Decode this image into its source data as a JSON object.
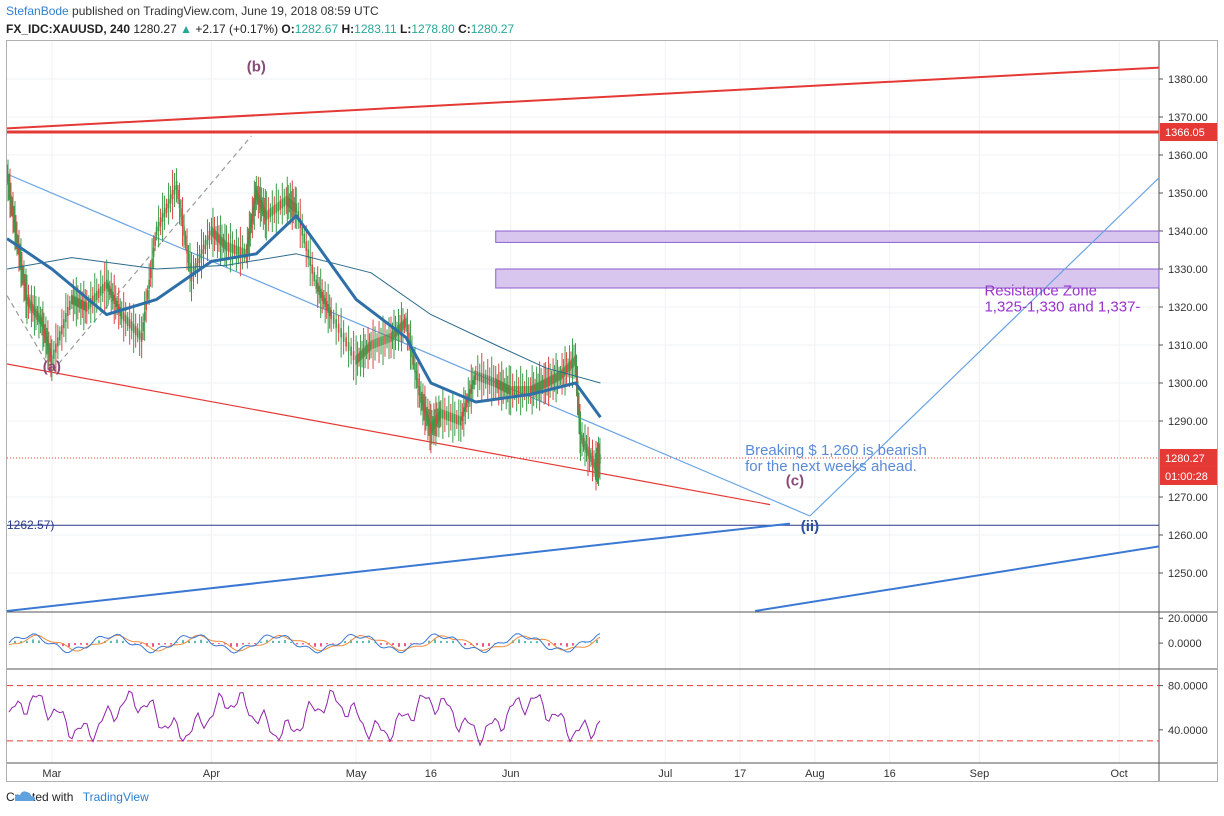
{
  "header": {
    "author": "StefanBode",
    "published_text": " published on TradingView.com, June 19, 2018 08:59 UTC",
    "symbol": "FX_IDC:XAUUSD, 240",
    "last": "1280.27",
    "arrow": "▲",
    "change": "+2.17 (+0.17%)",
    "o_label": "O:",
    "o_value": "1282.67",
    "h_label": "H:",
    "h_value": "1283.11",
    "l_label": "L:",
    "l_value": "1278.80",
    "c_label": "C:",
    "c_value": "1280.27"
  },
  "footer": {
    "created_with": "Created with",
    "brand": "TradingView"
  },
  "chart_data": {
    "type": "line",
    "symbol": "FX_IDC:XAUUSD",
    "interval": "240",
    "grid": true,
    "colors": {
      "price_line": "#ee4444",
      "ma_thick": "#2e6fa8",
      "ma_thin": "#2a6a8a",
      "red_line": "#e53935",
      "blue_line": "#3a78d4",
      "light_blue": "#6aa4e4",
      "zone_fill": "#d9c6ef",
      "zone_stroke": "#8b5fcf",
      "wave_label": "#8a4a78",
      "wave_ii": "#2a4f9a",
      "annotation_purple": "#9933cc",
      "annotation_blue": "#5a8ad8",
      "rsi_line": "#8e24aa",
      "osc_blue": "#3a78d4",
      "osc_orange": "#ef8a3a"
    },
    "x_axis": {
      "ticks": [
        {
          "label": "Mar",
          "date": "2018-03-01"
        },
        {
          "label": "Apr",
          "date": "2018-04-02"
        },
        {
          "label": "May",
          "date": "2018-05-01"
        },
        {
          "label": "16",
          "date": "2018-05-16"
        },
        {
          "label": "Jun",
          "date": "2018-06-01"
        },
        {
          "label": "Jul",
          "date": "2018-07-02"
        },
        {
          "label": "17",
          "date": "2018-07-17"
        },
        {
          "label": "Aug",
          "date": "2018-08-01"
        },
        {
          "label": "16",
          "date": "2018-08-16"
        },
        {
          "label": "Sep",
          "date": "2018-09-03"
        },
        {
          "label": "Oct",
          "date": "2018-10-01"
        }
      ],
      "range": [
        "2018-02-20",
        "2018-10-09"
      ]
    },
    "price_axis": {
      "ticks": [
        "1380.00",
        "1370.00",
        "1360.00",
        "1350.00",
        "1340.00",
        "1330.00",
        "1320.00",
        "1310.00",
        "1300.00",
        "1290.00",
        "1270.00",
        "1260.00",
        "1250.00"
      ],
      "ylim": [
        1240,
        1390
      ],
      "last_price_label": "1280.27",
      "countdown_label": "01:00:28",
      "hline_label": "1366.05"
    },
    "series": [
      {
        "kind": "price",
        "x": [
          "2018-02-20",
          "2018-02-22",
          "2018-02-24",
          "2018-02-27",
          "2018-03-01",
          "2018-03-05",
          "2018-03-08",
          "2018-03-12",
          "2018-03-15",
          "2018-03-19",
          "2018-03-22",
          "2018-03-26",
          "2018-03-29",
          "2018-04-02",
          "2018-04-05",
          "2018-04-09",
          "2018-04-11",
          "2018-04-13",
          "2018-04-17",
          "2018-04-19",
          "2018-04-23",
          "2018-04-26",
          "2018-05-01",
          "2018-05-04",
          "2018-05-08",
          "2018-05-11",
          "2018-05-14",
          "2018-05-16",
          "2018-05-18",
          "2018-05-22",
          "2018-05-25",
          "2018-05-29",
          "2018-06-01",
          "2018-06-05",
          "2018-06-08",
          "2018-06-11",
          "2018-06-14",
          "2018-06-15",
          "2018-06-18",
          "2018-06-19"
        ],
        "values": [
          1355,
          1338,
          1322,
          1316,
          1306,
          1322,
          1320,
          1326,
          1318,
          1312,
          1340,
          1352,
          1328,
          1340,
          1336,
          1334,
          1350,
          1344,
          1348,
          1346,
          1326,
          1318,
          1306,
          1310,
          1312,
          1316,
          1296,
          1288,
          1292,
          1290,
          1302,
          1300,
          1298,
          1298,
          1300,
          1302,
          1306,
          1286,
          1278,
          1280.27
        ]
      },
      {
        "kind": "ma_fast",
        "x": [
          "2018-02-20",
          "2018-03-01",
          "2018-03-12",
          "2018-03-22",
          "2018-04-02",
          "2018-04-11",
          "2018-04-19",
          "2018-05-01",
          "2018-05-11",
          "2018-05-16",
          "2018-05-25",
          "2018-06-05",
          "2018-06-14",
          "2018-06-19"
        ],
        "values": [
          1338,
          1330,
          1318,
          1322,
          1332,
          1334,
          1344,
          1322,
          1312,
          1300,
          1295,
          1297,
          1300,
          1291
        ]
      },
      {
        "kind": "ma_slow",
        "x": [
          "2018-02-20",
          "2018-03-05",
          "2018-03-22",
          "2018-04-05",
          "2018-04-19",
          "2018-05-04",
          "2018-05-16",
          "2018-05-29",
          "2018-06-08",
          "2018-06-19"
        ],
        "values": [
          1330,
          1333,
          1330,
          1331,
          1334,
          1329,
          1318,
          1310,
          1304,
          1300
        ]
      }
    ],
    "trendlines": [
      {
        "kind": "red_upper",
        "from": [
          "2018-02-20",
          1367
        ],
        "to": [
          "2018-10-09",
          1383
        ]
      },
      {
        "kind": "red_lower",
        "from": [
          "2018-02-20",
          1305
        ],
        "to": [
          "2018-07-23",
          1268
        ]
      },
      {
        "kind": "blue_channel_upper",
        "from": [
          "2018-02-20",
          1240
        ],
        "to": [
          "2018-07-27",
          1263
        ]
      },
      {
        "kind": "blue_channel_lower",
        "from": [
          "2018-07-20",
          1240
        ],
        "to": [
          "2018-10-09",
          1257
        ]
      },
      {
        "kind": "light_blue_down",
        "from": [
          "2018-02-20",
          1355
        ],
        "to": [
          "2018-07-31",
          1265
        ]
      },
      {
        "kind": "light_blue_up",
        "from": [
          "2018-07-31",
          1265
        ],
        "to": [
          "2018-10-09",
          1354
        ]
      },
      {
        "kind": "dashed_abc",
        "points": [
          [
            "2018-02-20",
            1323
          ],
          [
            "2018-03-01",
            1303
          ],
          [
            "2018-04-10",
            1365
          ]
        ]
      }
    ],
    "horizontal_lines": [
      {
        "value": 1366.05,
        "color": "#e53935",
        "label": "1366.05"
      },
      {
        "value": 1262.57,
        "color": "#2a3a8a",
        "label": "1262.57)"
      },
      {
        "value": 1280.27,
        "color": "#e53935",
        "style": "dotted"
      }
    ],
    "zones": [
      {
        "from": "2018-05-29",
        "low": 1337,
        "high": 1340
      },
      {
        "from": "2018-05-29",
        "low": 1325,
        "high": 1330
      }
    ],
    "wave_labels": [
      {
        "text": "(a)",
        "date": "2018-03-01",
        "price": 1303
      },
      {
        "text": "(b)",
        "date": "2018-04-11",
        "price": 1382
      },
      {
        "text": "(c)",
        "date": "2018-07-28",
        "price": 1273
      },
      {
        "text": "(ii)",
        "date": "2018-07-31",
        "price": 1261
      }
    ],
    "annotations": [
      {
        "lines": [
          "Resistance Zone",
          "1,325-1,330 and 1,337-"
        ],
        "date": "2018-09-04",
        "price": 1323
      },
      {
        "lines": [
          "Breaking $ 1,260 is bearish",
          "for the next weeks ahead."
        ],
        "date": "2018-07-18",
        "price": 1281
      }
    ],
    "oscillator": {
      "ticks": [
        "20.0000",
        "0.0000"
      ],
      "ylim": [
        -20,
        25
      ]
    },
    "rsi": {
      "ticks": [
        "80.0000",
        "40.0000"
      ],
      "ylim": [
        10,
        95
      ],
      "upper_band": 80,
      "lower_band": 30
    }
  }
}
